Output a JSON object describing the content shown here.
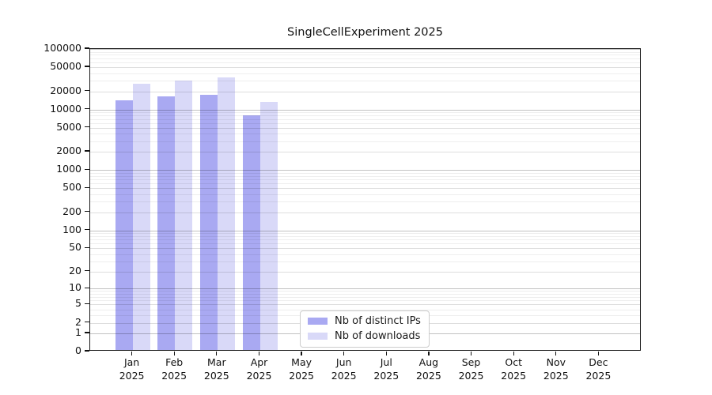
{
  "title": "SingleCellExperiment 2025",
  "chart_data": {
    "type": "bar",
    "title": "SingleCellExperiment 2025",
    "categories": [
      "Jan",
      "Feb",
      "Mar",
      "Apr",
      "May",
      "Jun",
      "Jul",
      "Aug",
      "Sep",
      "Oct",
      "Nov",
      "Dec"
    ],
    "category_year": "2025",
    "series": [
      {
        "name": "Nb of distinct IPs",
        "color": "#a9a9f2",
        "values": [
          14100,
          16400,
          17700,
          8100,
          null,
          null,
          null,
          null,
          null,
          null,
          null,
          null
        ]
      },
      {
        "name": "Nb of downloads",
        "color": "#d9d9f8",
        "values": [
          26700,
          29900,
          33700,
          13200,
          null,
          null,
          null,
          null,
          null,
          null,
          null,
          null
        ]
      }
    ],
    "xlabel": "",
    "ylabel": "",
    "ylim": [
      0,
      100000
    ],
    "y_scale": "log10(1+x)",
    "y_ticks": [
      0,
      1,
      2,
      5,
      10,
      20,
      50,
      100,
      200,
      500,
      1000,
      2000,
      5000,
      10000,
      20000,
      50000,
      100000
    ],
    "grid": true,
    "legend_position": "lower center (inside axes)"
  },
  "legend": {
    "items": [
      {
        "label": "Nb of distinct IPs",
        "color": "#a9a9f2"
      },
      {
        "label": "Nb of downloads",
        "color": "#d9d9f8"
      }
    ]
  }
}
